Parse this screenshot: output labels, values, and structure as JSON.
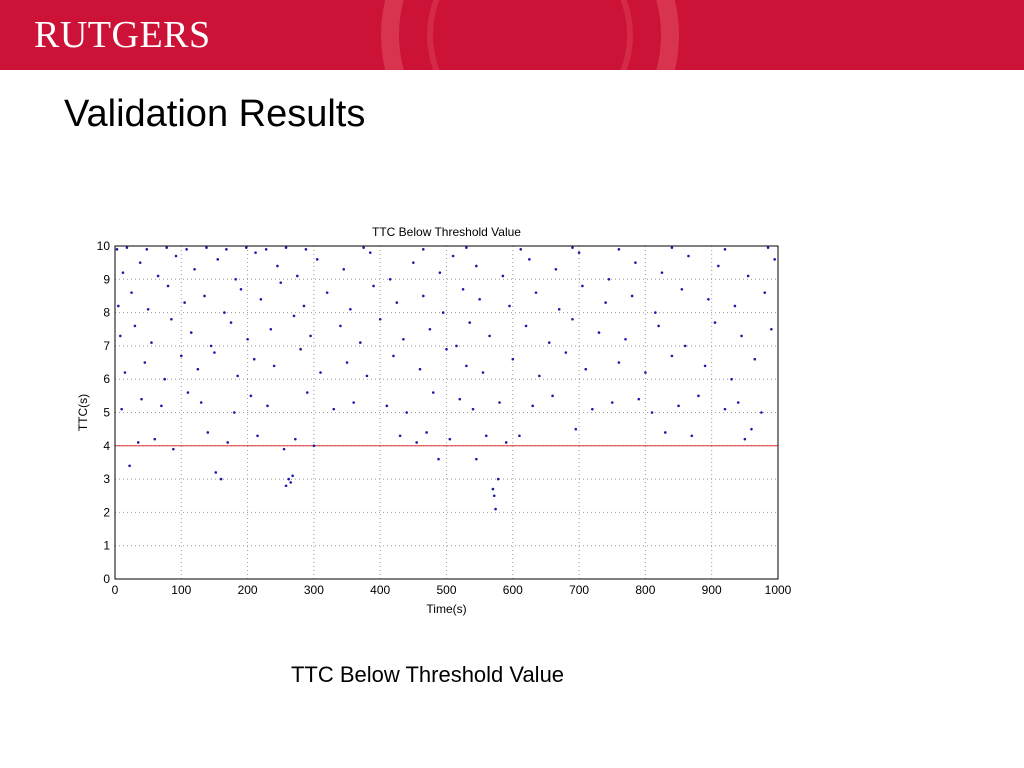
{
  "header": {
    "logo_text": "RUTGERS",
    "brand_color": "#cc1236"
  },
  "slide": {
    "title": "Validation Results",
    "caption": "TTC Below Threshold Value"
  },
  "chart_data": {
    "type": "scatter",
    "title": "TTC Below Threshold Value",
    "xlabel": "Time(s)",
    "ylabel": "TTC(s)",
    "xlim": [
      0,
      1000
    ],
    "ylim": [
      0,
      10
    ],
    "xticks": [
      0,
      100,
      200,
      300,
      400,
      500,
      600,
      700,
      800,
      900,
      1000
    ],
    "yticks": [
      0,
      1,
      2,
      3,
      4,
      5,
      6,
      7,
      8,
      9,
      10
    ],
    "grid": true,
    "point_color": "#1a1aa8",
    "threshold": {
      "y": 4,
      "color": "#e03030"
    },
    "series": [
      {
        "points": [
          [
            22,
            3.4
          ],
          [
            160,
            3.0
          ],
          [
            152,
            3.2
          ],
          [
            258,
            2.8
          ],
          [
            265,
            2.9
          ],
          [
            268,
            3.1
          ],
          [
            262,
            3.0
          ],
          [
            572,
            2.5
          ],
          [
            574,
            2.1
          ],
          [
            570,
            2.7
          ],
          [
            578,
            3.0
          ],
          [
            545,
            3.6
          ],
          [
            488,
            3.6
          ],
          [
            35,
            4.1
          ],
          [
            60,
            4.2
          ],
          [
            88,
            3.9
          ],
          [
            140,
            4.4
          ],
          [
            170,
            4.1
          ],
          [
            215,
            4.3
          ],
          [
            255,
            3.9
          ],
          [
            272,
            4.2
          ],
          [
            300,
            4.0
          ],
          [
            430,
            4.3
          ],
          [
            455,
            4.1
          ],
          [
            470,
            4.4
          ],
          [
            505,
            4.2
          ],
          [
            560,
            4.3
          ],
          [
            590,
            4.1
          ],
          [
            610,
            4.3
          ],
          [
            695,
            4.5
          ],
          [
            830,
            4.4
          ],
          [
            870,
            4.3
          ],
          [
            950,
            4.2
          ],
          [
            960,
            4.5
          ],
          [
            10,
            5.1
          ],
          [
            40,
            5.4
          ],
          [
            70,
            5.2
          ],
          [
            110,
            5.6
          ],
          [
            130,
            5.3
          ],
          [
            180,
            5.0
          ],
          [
            205,
            5.5
          ],
          [
            230,
            5.2
          ],
          [
            290,
            5.6
          ],
          [
            330,
            5.1
          ],
          [
            360,
            5.3
          ],
          [
            410,
            5.2
          ],
          [
            440,
            5.0
          ],
          [
            480,
            5.6
          ],
          [
            520,
            5.4
          ],
          [
            540,
            5.1
          ],
          [
            580,
            5.3
          ],
          [
            630,
            5.2
          ],
          [
            660,
            5.5
          ],
          [
            720,
            5.1
          ],
          [
            750,
            5.3
          ],
          [
            790,
            5.4
          ],
          [
            810,
            5.0
          ],
          [
            850,
            5.2
          ],
          [
            880,
            5.5
          ],
          [
            920,
            5.1
          ],
          [
            940,
            5.3
          ],
          [
            975,
            5.0
          ],
          [
            15,
            6.2
          ],
          [
            45,
            6.5
          ],
          [
            75,
            6.0
          ],
          [
            100,
            6.7
          ],
          [
            125,
            6.3
          ],
          [
            150,
            6.8
          ],
          [
            185,
            6.1
          ],
          [
            210,
            6.6
          ],
          [
            240,
            6.4
          ],
          [
            280,
            6.9
          ],
          [
            310,
            6.2
          ],
          [
            350,
            6.5
          ],
          [
            380,
            6.1
          ],
          [
            420,
            6.7
          ],
          [
            460,
            6.3
          ],
          [
            500,
            6.9
          ],
          [
            530,
            6.4
          ],
          [
            555,
            6.2
          ],
          [
            600,
            6.6
          ],
          [
            640,
            6.1
          ],
          [
            680,
            6.8
          ],
          [
            710,
            6.3
          ],
          [
            760,
            6.5
          ],
          [
            800,
            6.2
          ],
          [
            840,
            6.7
          ],
          [
            890,
            6.4
          ],
          [
            930,
            6.0
          ],
          [
            965,
            6.6
          ],
          [
            8,
            7.3
          ],
          [
            30,
            7.6
          ],
          [
            55,
            7.1
          ],
          [
            85,
            7.8
          ],
          [
            115,
            7.4
          ],
          [
            145,
            7.0
          ],
          [
            175,
            7.7
          ],
          [
            200,
            7.2
          ],
          [
            235,
            7.5
          ],
          [
            270,
            7.9
          ],
          [
            295,
            7.3
          ],
          [
            340,
            7.6
          ],
          [
            370,
            7.1
          ],
          [
            400,
            7.8
          ],
          [
            435,
            7.2
          ],
          [
            475,
            7.5
          ],
          [
            515,
            7.0
          ],
          [
            535,
            7.7
          ],
          [
            565,
            7.3
          ],
          [
            620,
            7.6
          ],
          [
            655,
            7.1
          ],
          [
            690,
            7.8
          ],
          [
            730,
            7.4
          ],
          [
            770,
            7.2
          ],
          [
            820,
            7.6
          ],
          [
            860,
            7.0
          ],
          [
            905,
            7.7
          ],
          [
            945,
            7.3
          ],
          [
            990,
            7.5
          ],
          [
            5,
            8.2
          ],
          [
            25,
            8.6
          ],
          [
            50,
            8.1
          ],
          [
            80,
            8.8
          ],
          [
            105,
            8.3
          ],
          [
            135,
            8.5
          ],
          [
            165,
            8.0
          ],
          [
            190,
            8.7
          ],
          [
            220,
            8.4
          ],
          [
            250,
            8.9
          ],
          [
            285,
            8.2
          ],
          [
            320,
            8.6
          ],
          [
            355,
            8.1
          ],
          [
            390,
            8.8
          ],
          [
            425,
            8.3
          ],
          [
            465,
            8.5
          ],
          [
            495,
            8.0
          ],
          [
            525,
            8.7
          ],
          [
            550,
            8.4
          ],
          [
            595,
            8.2
          ],
          [
            635,
            8.6
          ],
          [
            670,
            8.1
          ],
          [
            705,
            8.8
          ],
          [
            740,
            8.3
          ],
          [
            780,
            8.5
          ],
          [
            815,
            8.0
          ],
          [
            855,
            8.7
          ],
          [
            895,
            8.4
          ],
          [
            935,
            8.2
          ],
          [
            980,
            8.6
          ],
          [
            12,
            9.2
          ],
          [
            38,
            9.5
          ],
          [
            65,
            9.1
          ],
          [
            92,
            9.7
          ],
          [
            120,
            9.3
          ],
          [
            155,
            9.6
          ],
          [
            182,
            9.0
          ],
          [
            212,
            9.8
          ],
          [
            245,
            9.4
          ],
          [
            275,
            9.1
          ],
          [
            305,
            9.6
          ],
          [
            345,
            9.3
          ],
          [
            385,
            9.8
          ],
          [
            415,
            9.0
          ],
          [
            450,
            9.5
          ],
          [
            490,
            9.2
          ],
          [
            510,
            9.7
          ],
          [
            545,
            9.4
          ],
          [
            585,
            9.1
          ],
          [
            625,
            9.6
          ],
          [
            665,
            9.3
          ],
          [
            700,
            9.8
          ],
          [
            745,
            9.0
          ],
          [
            785,
            9.5
          ],
          [
            825,
            9.2
          ],
          [
            865,
            9.7
          ],
          [
            910,
            9.4
          ],
          [
            955,
            9.1
          ],
          [
            995,
            9.6
          ],
          [
            3,
            9.9
          ],
          [
            18,
            9.95
          ],
          [
            48,
            9.9
          ],
          [
            78,
            9.95
          ],
          [
            108,
            9.9
          ],
          [
            138,
            9.95
          ],
          [
            168,
            9.9
          ],
          [
            198,
            9.95
          ],
          [
            228,
            9.9
          ],
          [
            258,
            9.95
          ],
          [
            288,
            9.9
          ],
          [
            375,
            9.95
          ],
          [
            465,
            9.9
          ],
          [
            530,
            9.95
          ],
          [
            612,
            9.9
          ],
          [
            690,
            9.95
          ],
          [
            760,
            9.9
          ],
          [
            840,
            9.95
          ],
          [
            920,
            9.9
          ],
          [
            985,
            9.95
          ]
        ]
      }
    ]
  }
}
